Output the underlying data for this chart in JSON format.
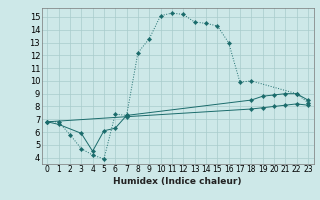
{
  "title": "",
  "xlabel": "Humidex (Indice chaleur)",
  "xlim": [
    -0.5,
    23.5
  ],
  "ylim": [
    3.5,
    15.7
  ],
  "xticks": [
    0,
    1,
    2,
    3,
    4,
    5,
    6,
    7,
    8,
    9,
    10,
    11,
    12,
    13,
    14,
    15,
    16,
    17,
    18,
    19,
    20,
    21,
    22,
    23
  ],
  "yticks": [
    4,
    5,
    6,
    7,
    8,
    9,
    10,
    11,
    12,
    13,
    14,
    15
  ],
  "bg_color": "#cde8e8",
  "line_color": "#1a6b6b",
  "grid_color": "#a8cccc",
  "line1_x": [
    0,
    1,
    2,
    3,
    4,
    5,
    6,
    7,
    8,
    9,
    10,
    11,
    12,
    13,
    14,
    15,
    16,
    17,
    18,
    22,
    23
  ],
  "line1_y": [
    6.8,
    6.8,
    5.8,
    4.7,
    4.2,
    3.9,
    7.4,
    7.3,
    12.2,
    13.3,
    15.1,
    15.3,
    15.2,
    14.6,
    14.5,
    14.3,
    13.0,
    9.9,
    10.0,
    9.0,
    8.3
  ],
  "line2_x": [
    0,
    1,
    3,
    4,
    5,
    6,
    7,
    18,
    19,
    20,
    21,
    22,
    23
  ],
  "line2_y": [
    6.8,
    6.6,
    5.9,
    4.5,
    6.1,
    6.3,
    7.3,
    8.5,
    8.8,
    8.9,
    9.0,
    9.0,
    8.5
  ],
  "line3_x": [
    0,
    7,
    18,
    19,
    20,
    21,
    22,
    23
  ],
  "line3_y": [
    6.8,
    7.2,
    7.8,
    7.9,
    8.0,
    8.1,
    8.2,
    8.1
  ],
  "tick_fontsize": 5.5,
  "xlabel_fontsize": 6.5
}
